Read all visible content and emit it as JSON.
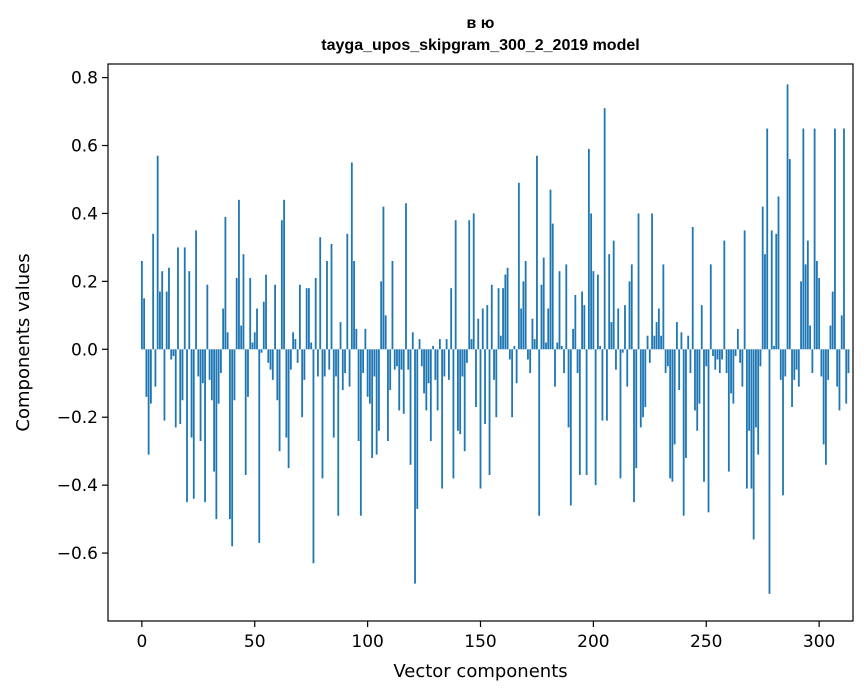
{
  "chart_data": {
    "type": "bar",
    "title_line1": "в ю",
    "title_line2": "tayga_upos_skipgram_300_2_2019 model",
    "xlabel": "Vector components",
    "ylabel": "Components values",
    "xlim": [
      -15,
      315
    ],
    "ylim": [
      -0.8,
      0.84
    ],
    "xticks": [
      0,
      50,
      100,
      150,
      200,
      250,
      300
    ],
    "xtick_labels": [
      "0",
      "50",
      "100",
      "150",
      "200",
      "250",
      "300"
    ],
    "yticks": [
      -0.6,
      -0.4,
      -0.2,
      0.0,
      0.2,
      0.4,
      0.6,
      0.8
    ],
    "ytick_labels": [
      "−0.6",
      "−0.4",
      "−0.2",
      "0.0",
      "0.2",
      "0.4",
      "0.6",
      "0.8"
    ],
    "bar_color": "#1f77b4",
    "values": [
      0.26,
      0.15,
      -0.14,
      -0.31,
      -0.16,
      0.34,
      -0.11,
      0.57,
      0.17,
      0.23,
      -0.21,
      0.17,
      0.24,
      -0.03,
      -0.02,
      -0.23,
      0.3,
      -0.22,
      -0.15,
      0.3,
      -0.45,
      0.23,
      -0.26,
      -0.44,
      0.35,
      -0.08,
      -0.27,
      -0.1,
      -0.45,
      0.19,
      -0.09,
      -0.15,
      -0.36,
      -0.5,
      -0.16,
      -0.07,
      0.12,
      0.39,
      0.05,
      -0.5,
      -0.58,
      -0.15,
      0.21,
      0.44,
      0.07,
      0.28,
      -0.37,
      -0.14,
      0.21,
      0.02,
      0.05,
      0.12,
      -0.57,
      -0.01,
      0.14,
      0.22,
      -0.04,
      -0.06,
      -0.09,
      0.19,
      -0.15,
      -0.3,
      0.38,
      0.44,
      -0.26,
      -0.35,
      -0.06,
      0.05,
      0.03,
      -0.04,
      0.19,
      -0.2,
      -0.09,
      0.18,
      0.18,
      0.02,
      -0.63,
      0.21,
      -0.08,
      0.33,
      -0.38,
      -0.08,
      0.26,
      -0.06,
      0.31,
      -0.26,
      -0.08,
      -0.49,
      0.08,
      -0.12,
      -0.07,
      0.34,
      -0.11,
      0.55,
      0.26,
      0.06,
      -0.27,
      -0.49,
      -0.07,
      0.06,
      -0.14,
      -0.16,
      -0.32,
      -0.08,
      -0.31,
      -0.24,
      0.2,
      0.42,
      0.1,
      -0.27,
      -0.12,
      0.26,
      -0.06,
      -0.05,
      -0.18,
      -0.06,
      -0.19,
      0.43,
      -0.06,
      -0.34,
      0.05,
      -0.69,
      -0.47,
      0.03,
      -0.05,
      -0.13,
      -0.18,
      -0.1,
      -0.27,
      0.01,
      -0.09,
      -0.18,
      0.03,
      -0.41,
      -0.08,
      0.03,
      -0.09,
      0.18,
      -0.38,
      0.38,
      -0.24,
      -0.25,
      -0.08,
      -0.3,
      -0.04,
      0.38,
      0.03,
      0.4,
      -0.17,
      0.09,
      -0.41,
      0.12,
      -0.22,
      0.13,
      -0.37,
      0.19,
      -0.09,
      -0.2,
      0.18,
      0.04,
      0.18,
      0.22,
      0.24,
      -0.03,
      -0.2,
      0.01,
      -0.1,
      0.49,
      0.12,
      0.2,
      0.26,
      -0.03,
      -0.07,
      0.09,
      0.03,
      0.57,
      -0.49,
      0.19,
      0.27,
      0.02,
      0.12,
      0.47,
      0.37,
      -0.11,
      0.02,
      0.23,
      0.01,
      -0.07,
      0.25,
      -0.23,
      -0.46,
      0.06,
      0.16,
      -0.07,
      -0.37,
      0.17,
      0.13,
      -0.37,
      0.59,
      0.4,
      0.23,
      -0.4,
      0.22,
      0.01,
      -0.21,
      0.71,
      -0.21,
      0.28,
      0.08,
      0.32,
      -0.06,
      0.12,
      -0.38,
      -0.01,
      0.13,
      -0.11,
      0.2,
      0.25,
      -0.45,
      -0.35,
      0.4,
      -0.23,
      -0.2,
      -0.17,
      0.04,
      -0.04,
      0.4,
      0.04,
      0.08,
      0.12,
      0.04,
      0.25,
      -0.07,
      -0.05,
      -0.38,
      -0.39,
      -0.28,
      0.08,
      -0.12,
      0.05,
      -0.49,
      -0.32,
      0.04,
      -0.07,
      0.36,
      -0.18,
      -0.24,
      -0.16,
      0.13,
      -0.39,
      -0.05,
      -0.48,
      0.25,
      -0.02,
      -0.06,
      -0.03,
      -0.07,
      -0.03,
      0.32,
      -0.07,
      -0.36,
      -0.13,
      -0.16,
      -0.02,
      0.06,
      -0.04,
      -0.11,
      0.35,
      -0.41,
      -0.24,
      -0.41,
      -0.56,
      -0.23,
      -0.31,
      -0.05,
      0.42,
      0.28,
      0.65,
      -0.72,
      0.35,
      0.01,
      0.34,
      0.45,
      -0.09,
      -0.43,
      -0.08,
      0.78,
      0.56,
      -0.17,
      -0.09,
      -0.06,
      -0.11,
      0.2,
      0.65,
      0.25,
      0.32,
      0.07,
      -0.07,
      0.65,
      0.26,
      0.21,
      -0.08,
      -0.28,
      -0.34,
      -0.09,
      0.07,
      0.17,
      0.65,
      -0.11,
      -0.18,
      0.1,
      0.65,
      -0.16,
      -0.07
    ]
  }
}
